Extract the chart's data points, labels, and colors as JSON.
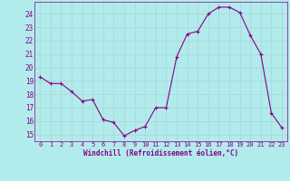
{
  "x": [
    0,
    1,
    2,
    3,
    4,
    5,
    6,
    7,
    8,
    9,
    10,
    11,
    12,
    13,
    14,
    15,
    16,
    17,
    18,
    19,
    20,
    21,
    22,
    23
  ],
  "y": [
    19.3,
    18.8,
    18.8,
    18.2,
    17.5,
    17.6,
    16.1,
    15.9,
    14.9,
    15.3,
    15.6,
    17.0,
    17.0,
    20.8,
    22.5,
    22.7,
    24.0,
    24.5,
    24.5,
    24.1,
    22.4,
    21.0,
    16.6,
    15.5
  ],
  "xlabel": "Windchill (Refroidissement éolien,°C)",
  "line_color": "#880088",
  "marker": "+",
  "bg_color": "#b2ebeb",
  "grid_color": "#aadddd",
  "tick_label_color": "#880088",
  "axis_label_color": "#880088",
  "ylim": [
    14.5,
    24.9
  ],
  "yticks": [
    15,
    16,
    17,
    18,
    19,
    20,
    21,
    22,
    23,
    24
  ],
  "xlim": [
    -0.5,
    23.5
  ],
  "xticks": [
    0,
    1,
    2,
    3,
    4,
    5,
    6,
    7,
    8,
    9,
    10,
    11,
    12,
    13,
    14,
    15,
    16,
    17,
    18,
    19,
    20,
    21,
    22,
    23
  ]
}
